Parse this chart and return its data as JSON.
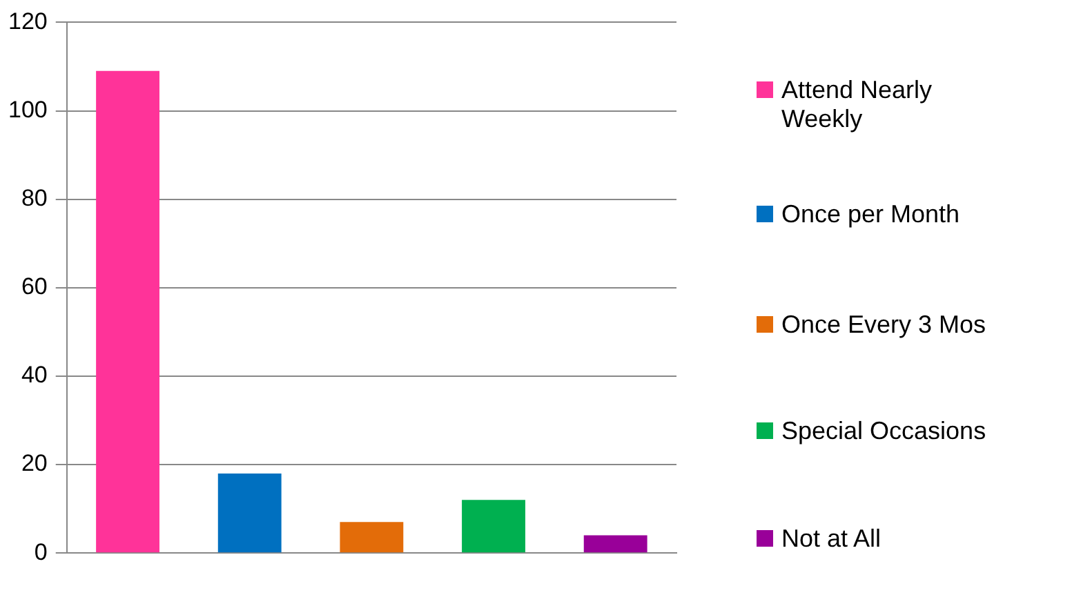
{
  "chart_data": {
    "type": "bar",
    "categories": [
      null,
      null,
      null,
      null,
      null
    ],
    "series": [
      {
        "name": "Attend Nearly Weekly",
        "color": "#ff3399",
        "values": [
          109,
          null,
          null,
          null,
          null
        ]
      },
      {
        "name": "Once per Month",
        "color": "#0070c0",
        "values": [
          null,
          18,
          null,
          null,
          null
        ]
      },
      {
        "name": "Once Every 3 Mos",
        "color": "#e36c09",
        "values": [
          null,
          null,
          7,
          null,
          null
        ]
      },
      {
        "name": "Special Occasions",
        "color": "#00b050",
        "values": [
          null,
          null,
          null,
          12,
          null
        ]
      },
      {
        "name": "Not at All",
        "color": "#990099",
        "values": [
          null,
          null,
          null,
          null,
          4
        ]
      }
    ],
    "ylim": [
      0,
      120
    ],
    "yticks": [
      0,
      20,
      40,
      60,
      80,
      100,
      120
    ],
    "grid": "y",
    "legend": "right"
  }
}
